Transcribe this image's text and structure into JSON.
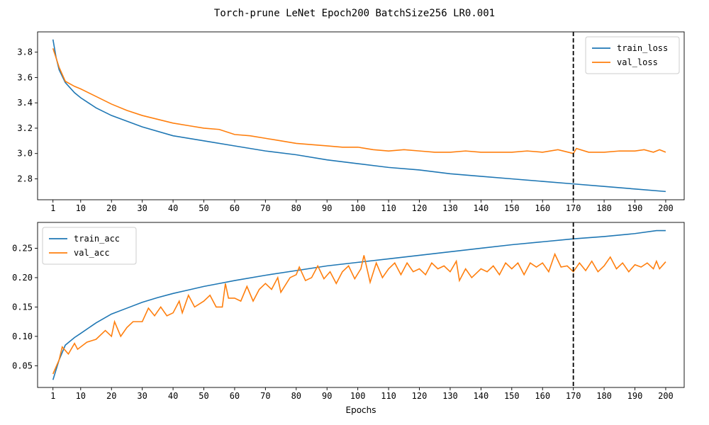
{
  "title": "Torch-prune LeNet Epoch200 BatchSize256 LR0.001",
  "colors": {
    "train": "#1f77b4",
    "val": "#ff7f0e",
    "marker": "#000000"
  },
  "chart_data": [
    {
      "type": "line",
      "title": "",
      "xlabel": "",
      "ylabel": "",
      "xlim": [
        -4,
        206
      ],
      "ylim": [
        2.635,
        3.96
      ],
      "xticks": [
        1,
        10,
        20,
        30,
        40,
        50,
        60,
        70,
        80,
        90,
        100,
        110,
        120,
        130,
        140,
        150,
        160,
        170,
        180,
        190,
        200
      ],
      "yticks": [
        2.8,
        3.0,
        3.2,
        3.4,
        3.6,
        3.8
      ],
      "ytick_labels": [
        "2.8",
        "3.0",
        "3.2",
        "3.4",
        "3.6",
        "3.8"
      ],
      "vline_x": 170,
      "legend_position": "upper-right",
      "series": [
        {
          "name": "train_loss",
          "color": "#1f77b4",
          "points": [
            [
              1,
              3.9
            ],
            [
              2,
              3.76
            ],
            [
              3,
              3.66
            ],
            [
              5,
              3.56
            ],
            [
              8,
              3.48
            ],
            [
              10,
              3.44
            ],
            [
              15,
              3.36
            ],
            [
              20,
              3.3
            ],
            [
              30,
              3.21
            ],
            [
              40,
              3.14
            ],
            [
              50,
              3.1
            ],
            [
              60,
              3.06
            ],
            [
              70,
              3.02
            ],
            [
              80,
              2.99
            ],
            [
              90,
              2.95
            ],
            [
              100,
              2.92
            ],
            [
              110,
              2.89
            ],
            [
              120,
              2.87
            ],
            [
              130,
              2.84
            ],
            [
              140,
              2.82
            ],
            [
              150,
              2.8
            ],
            [
              160,
              2.78
            ],
            [
              170,
              2.76
            ],
            [
              180,
              2.74
            ],
            [
              190,
              2.72
            ],
            [
              200,
              2.7
            ]
          ]
        },
        {
          "name": "val_loss",
          "color": "#ff7f0e",
          "points": [
            [
              1,
              3.83
            ],
            [
              3,
              3.68
            ],
            [
              5,
              3.57
            ],
            [
              8,
              3.53
            ],
            [
              10,
              3.51
            ],
            [
              15,
              3.45
            ],
            [
              20,
              3.39
            ],
            [
              25,
              3.34
            ],
            [
              30,
              3.3
            ],
            [
              35,
              3.27
            ],
            [
              40,
              3.24
            ],
            [
              45,
              3.22
            ],
            [
              50,
              3.2
            ],
            [
              55,
              3.19
            ],
            [
              60,
              3.15
            ],
            [
              65,
              3.14
            ],
            [
              70,
              3.12
            ],
            [
              75,
              3.1
            ],
            [
              80,
              3.08
            ],
            [
              85,
              3.07
            ],
            [
              90,
              3.06
            ],
            [
              95,
              3.05
            ],
            [
              100,
              3.05
            ],
            [
              105,
              3.03
            ],
            [
              110,
              3.02
            ],
            [
              115,
              3.03
            ],
            [
              120,
              3.02
            ],
            [
              125,
              3.01
            ],
            [
              130,
              3.01
            ],
            [
              135,
              3.02
            ],
            [
              140,
              3.01
            ],
            [
              145,
              3.01
            ],
            [
              150,
              3.01
            ],
            [
              155,
              3.02
            ],
            [
              160,
              3.01
            ],
            [
              165,
              3.03
            ],
            [
              170,
              3.0
            ],
            [
              171,
              3.04
            ],
            [
              175,
              3.01
            ],
            [
              180,
              3.01
            ],
            [
              185,
              3.02
            ],
            [
              190,
              3.02
            ],
            [
              193,
              3.03
            ],
            [
              196,
              3.01
            ],
            [
              198,
              3.03
            ],
            [
              200,
              3.01
            ]
          ]
        }
      ]
    },
    {
      "type": "line",
      "title": "",
      "xlabel": "Epochs",
      "ylabel": "",
      "xlim": [
        -4,
        206
      ],
      "ylim": [
        0.013,
        0.294
      ],
      "xticks": [
        1,
        10,
        20,
        30,
        40,
        50,
        60,
        70,
        80,
        90,
        100,
        110,
        120,
        130,
        140,
        150,
        160,
        170,
        180,
        190,
        200
      ],
      "yticks": [
        0.05,
        0.1,
        0.15,
        0.2,
        0.25
      ],
      "ytick_labels": [
        "0.05",
        "0.10",
        "0.15",
        "0.20",
        "0.25"
      ],
      "vline_x": 170,
      "legend_position": "upper-left",
      "series": [
        {
          "name": "train_acc",
          "color": "#1f77b4",
          "points": [
            [
              1,
              0.026
            ],
            [
              3,
              0.06
            ],
            [
              5,
              0.085
            ],
            [
              8,
              0.098
            ],
            [
              10,
              0.105
            ],
            [
              15,
              0.123
            ],
            [
              20,
              0.138
            ],
            [
              25,
              0.148
            ],
            [
              30,
              0.158
            ],
            [
              35,
              0.166
            ],
            [
              40,
              0.173
            ],
            [
              45,
              0.179
            ],
            [
              50,
              0.185
            ],
            [
              55,
              0.19
            ],
            [
              60,
              0.195
            ],
            [
              70,
              0.204
            ],
            [
              80,
              0.212
            ],
            [
              90,
              0.22
            ],
            [
              100,
              0.226
            ],
            [
              110,
              0.232
            ],
            [
              120,
              0.238
            ],
            [
              130,
              0.244
            ],
            [
              140,
              0.25
            ],
            [
              150,
              0.256
            ],
            [
              160,
              0.261
            ],
            [
              170,
              0.266
            ],
            [
              180,
              0.27
            ],
            [
              190,
              0.275
            ],
            [
              197,
              0.28
            ],
            [
              200,
              0.28
            ]
          ]
        },
        {
          "name": "val_acc",
          "color": "#ff7f0e",
          "points": [
            [
              1,
              0.036
            ],
            [
              3,
              0.06
            ],
            [
              4,
              0.082
            ],
            [
              6,
              0.07
            ],
            [
              8,
              0.088
            ],
            [
              9,
              0.078
            ],
            [
              12,
              0.09
            ],
            [
              15,
              0.095
            ],
            [
              18,
              0.11
            ],
            [
              20,
              0.1
            ],
            [
              21,
              0.125
            ],
            [
              23,
              0.1
            ],
            [
              25,
              0.115
            ],
            [
              27,
              0.125
            ],
            [
              30,
              0.125
            ],
            [
              32,
              0.148
            ],
            [
              34,
              0.135
            ],
            [
              36,
              0.15
            ],
            [
              38,
              0.135
            ],
            [
              40,
              0.14
            ],
            [
              42,
              0.16
            ],
            [
              43,
              0.14
            ],
            [
              45,
              0.17
            ],
            [
              47,
              0.15
            ],
            [
              50,
              0.16
            ],
            [
              52,
              0.17
            ],
            [
              54,
              0.15
            ],
            [
              56,
              0.15
            ],
            [
              57,
              0.19
            ],
            [
              58,
              0.165
            ],
            [
              60,
              0.165
            ],
            [
              62,
              0.16
            ],
            [
              64,
              0.185
            ],
            [
              66,
              0.16
            ],
            [
              68,
              0.18
            ],
            [
              70,
              0.19
            ],
            [
              72,
              0.18
            ],
            [
              74,
              0.2
            ],
            [
              75,
              0.175
            ],
            [
              78,
              0.2
            ],
            [
              80,
              0.205
            ],
            [
              81,
              0.218
            ],
            [
              83,
              0.195
            ],
            [
              85,
              0.2
            ],
            [
              87,
              0.22
            ],
            [
              89,
              0.198
            ],
            [
              91,
              0.21
            ],
            [
              93,
              0.19
            ],
            [
              95,
              0.21
            ],
            [
              97,
              0.22
            ],
            [
              99,
              0.198
            ],
            [
              101,
              0.215
            ],
            [
              102,
              0.238
            ],
            [
              104,
              0.192
            ],
            [
              106,
              0.225
            ],
            [
              108,
              0.2
            ],
            [
              110,
              0.215
            ],
            [
              112,
              0.225
            ],
            [
              114,
              0.205
            ],
            [
              116,
              0.225
            ],
            [
              118,
              0.21
            ],
            [
              120,
              0.215
            ],
            [
              122,
              0.205
            ],
            [
              124,
              0.225
            ],
            [
              126,
              0.215
            ],
            [
              128,
              0.22
            ],
            [
              130,
              0.21
            ],
            [
              132,
              0.228
            ],
            [
              133,
              0.195
            ],
            [
              135,
              0.215
            ],
            [
              137,
              0.2
            ],
            [
              140,
              0.215
            ],
            [
              142,
              0.21
            ],
            [
              144,
              0.22
            ],
            [
              146,
              0.205
            ],
            [
              148,
              0.225
            ],
            [
              150,
              0.215
            ],
            [
              152,
              0.225
            ],
            [
              154,
              0.205
            ],
            [
              156,
              0.225
            ],
            [
              158,
              0.218
            ],
            [
              160,
              0.225
            ],
            [
              162,
              0.21
            ],
            [
              164,
              0.24
            ],
            [
              166,
              0.218
            ],
            [
              168,
              0.22
            ],
            [
              170,
              0.21
            ],
            [
              172,
              0.225
            ],
            [
              174,
              0.212
            ],
            [
              176,
              0.228
            ],
            [
              178,
              0.21
            ],
            [
              180,
              0.22
            ],
            [
              182,
              0.235
            ],
            [
              184,
              0.215
            ],
            [
              186,
              0.225
            ],
            [
              188,
              0.21
            ],
            [
              190,
              0.222
            ],
            [
              192,
              0.218
            ],
            [
              194,
              0.225
            ],
            [
              196,
              0.215
            ],
            [
              197,
              0.228
            ],
            [
              198,
              0.215
            ],
            [
              200,
              0.227
            ]
          ]
        }
      ]
    }
  ]
}
